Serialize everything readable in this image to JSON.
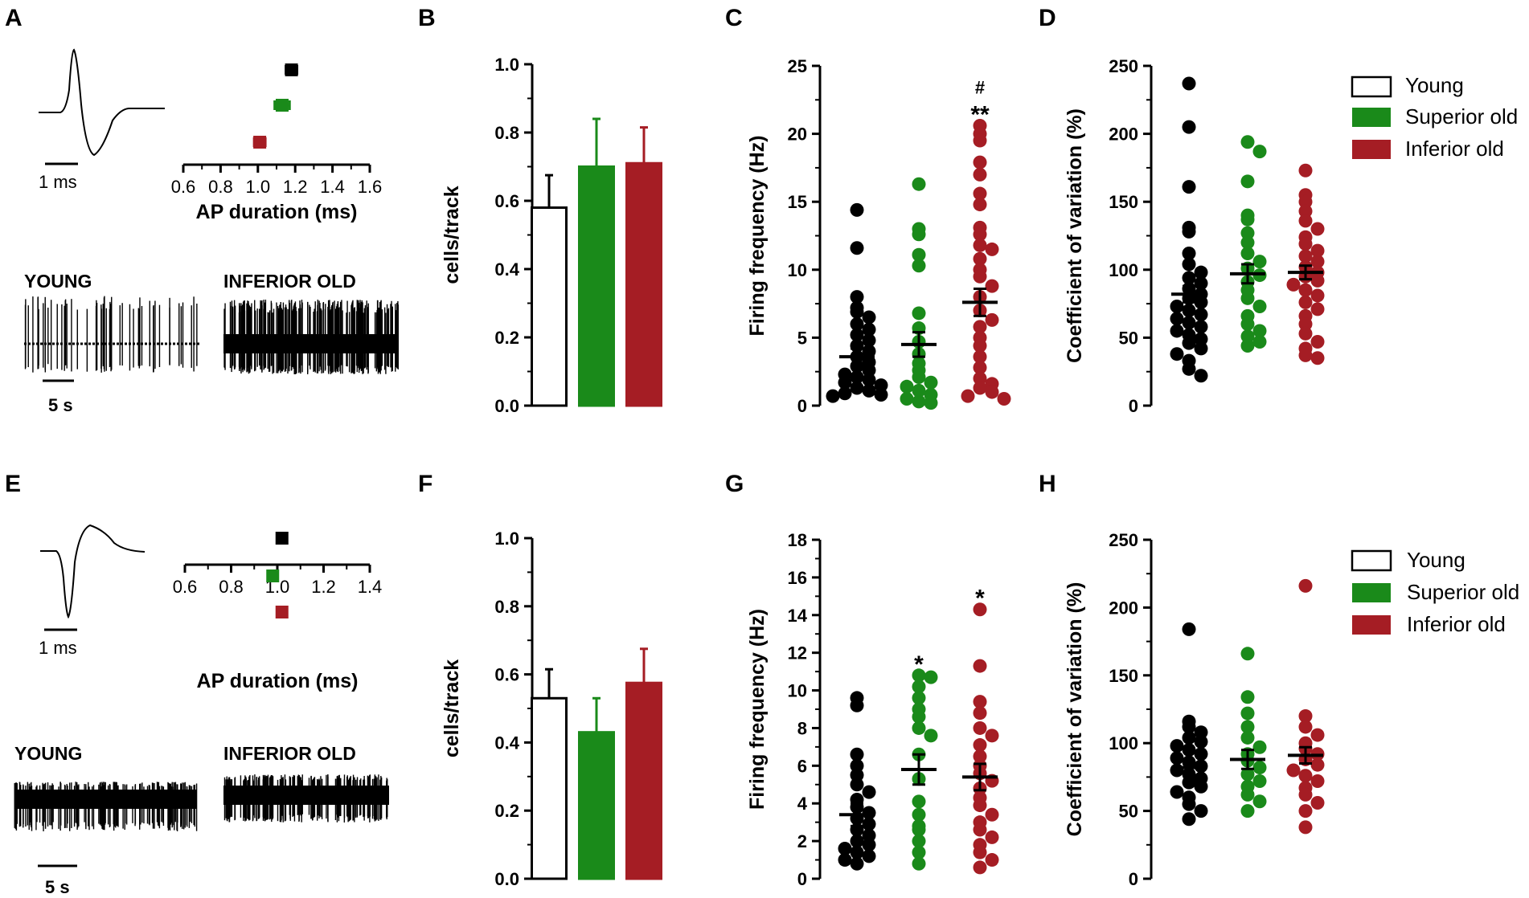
{
  "colors": {
    "young": "#000000",
    "superior": "#1a8a1a",
    "inferior": "#a51d24"
  },
  "panels": {
    "A": "A",
    "B": "B",
    "C": "C",
    "D": "D",
    "E": "E",
    "F": "F",
    "G": "G",
    "H": "H"
  },
  "legend": {
    "young": "Young",
    "superior": "Superior old",
    "inferior": "Inferior old"
  },
  "traces": {
    "young": "YOUNG",
    "inferior": "INFERIOR OLD",
    "scale_time": "5 s",
    "scale_spike": "1 ms"
  },
  "chart_data": [
    {
      "id": "A",
      "type": "scatter",
      "title": "",
      "xlabel": "AP duration (ms)",
      "xlim": [
        0.6,
        1.6
      ],
      "ticks": [
        "0.6",
        "0.8",
        "1.0",
        "1.2",
        "1.4",
        "1.6"
      ],
      "series": [
        {
          "name": "Young",
          "mean": 1.18,
          "sem": 0.03
        },
        {
          "name": "Superior old",
          "mean": 1.13,
          "sem": 0.04
        },
        {
          "name": "Inferior old",
          "mean": 1.01,
          "sem": 0.03
        }
      ]
    },
    {
      "id": "B",
      "type": "bar",
      "ylabel": "cells/track",
      "ylim": [
        0,
        1.0
      ],
      "ticks": [
        "0.0",
        "0.2",
        "0.4",
        "0.6",
        "0.8",
        "1.0"
      ],
      "categories": [
        "Young",
        "Superior old",
        "Inferior old"
      ],
      "values": [
        0.58,
        0.7,
        0.71
      ],
      "errors": [
        0.095,
        0.14,
        0.105
      ]
    },
    {
      "id": "C",
      "type": "scatter",
      "ylabel": "Firing frequency (Hz)",
      "ylim": [
        0,
        25
      ],
      "ticks": [
        "0",
        "5",
        "10",
        "15",
        "20",
        "25"
      ],
      "categories": [
        "Young",
        "Superior old",
        "Inferior old"
      ],
      "means": [
        3.6,
        4.5,
        7.6
      ],
      "sems": [
        0.6,
        0.9,
        1.0
      ],
      "annotations": [
        {
          "group": 2,
          "lines": [
            "#",
            "**"
          ]
        }
      ],
      "points": [
        [
          14.4,
          11.6,
          8.0,
          7.2,
          6.9,
          6.5,
          6.0,
          5.6,
          5.2,
          4.8,
          4.4,
          4.0,
          3.6,
          3.2,
          2.9,
          2.6,
          2.3,
          2.1,
          1.9,
          1.7,
          1.5,
          1.3,
          1.1,
          0.9,
          0.8,
          0.7
        ],
        [
          16.3,
          13.0,
          12.6,
          11.1,
          10.3,
          6.8,
          5.7,
          4.7,
          3.8,
          3.1,
          2.6,
          2.1,
          1.7,
          1.4,
          1.1,
          0.8,
          0.5,
          0.3,
          0.2
        ],
        [
          20.6,
          20.0,
          19.5,
          17.9,
          17.0,
          15.6,
          14.8,
          13.1,
          12.6,
          11.8,
          11.5,
          10.8,
          10.0,
          9.5,
          8.8,
          8.0,
          7.0,
          6.3,
          5.8,
          5.0,
          4.4,
          3.6,
          2.8,
          2.0,
          1.6,
          1.3,
          1.0,
          0.7,
          0.5
        ]
      ]
    },
    {
      "id": "D",
      "type": "scatter",
      "ylabel": "Coefficient of variation (%)",
      "ylim": [
        0,
        250
      ],
      "ticks": [
        "0",
        "50",
        "100",
        "150",
        "200",
        "250"
      ],
      "categories": [
        "Young",
        "Superior old",
        "Inferior old"
      ],
      "means": [
        82,
        97,
        98
      ],
      "sems": [
        6,
        7,
        5
      ],
      "points": [
        [
          237,
          205,
          161,
          131,
          128,
          112,
          104,
          98,
          94,
          90,
          86,
          82,
          79,
          76,
          73,
          70,
          67,
          64,
          61,
          58,
          55,
          52,
          49,
          46,
          42,
          38,
          33,
          27,
          22
        ],
        [
          194,
          187,
          165,
          140,
          137,
          127,
          120,
          112,
          106,
          101,
          96,
          91,
          85,
          79,
          73,
          66,
          60,
          55,
          51,
          47,
          44
        ],
        [
          173,
          155,
          150,
          143,
          136,
          130,
          124,
          119,
          114,
          110,
          106,
          102,
          98,
          95,
          92,
          89,
          85,
          81,
          76,
          71,
          66,
          60,
          53,
          47,
          42,
          37,
          35
        ]
      ]
    },
    {
      "id": "E",
      "type": "scatter",
      "xlabel": "AP duration (ms)",
      "xlim": [
        0.6,
        1.4
      ],
      "ticks": [
        "0.6",
        "0.8",
        "1.0",
        "1.2",
        "1.4"
      ],
      "series": [
        {
          "name": "Young",
          "mean": 1.02,
          "sem": 0.01
        },
        {
          "name": "Superior old",
          "mean": 0.98,
          "sem": 0.02
        },
        {
          "name": "Inferior old",
          "mean": 1.02,
          "sem": 0.02
        }
      ]
    },
    {
      "id": "F",
      "type": "bar",
      "ylabel": "cells/track",
      "ylim": [
        0,
        1.0
      ],
      "ticks": [
        "0.0",
        "0.2",
        "0.4",
        "0.6",
        "0.8",
        "1.0"
      ],
      "categories": [
        "Young",
        "Superior old",
        "Inferior old"
      ],
      "values": [
        0.53,
        0.43,
        0.575
      ],
      "errors": [
        0.085,
        0.1,
        0.1
      ]
    },
    {
      "id": "G",
      "type": "scatter",
      "ylabel": "Firing frequency (Hz)",
      "ylim": [
        0,
        18
      ],
      "ticks": [
        "0",
        "2",
        "4",
        "6",
        "8",
        "10",
        "12",
        "14",
        "16",
        "18"
      ],
      "categories": [
        "Young",
        "Superior old",
        "Inferior old"
      ],
      "means": [
        3.4,
        5.8,
        5.4
      ],
      "sems": [
        0.6,
        0.8,
        0.7
      ],
      "annotations": [
        {
          "group": 1,
          "lines": [
            "*"
          ]
        },
        {
          "group": 2,
          "lines": [
            "*"
          ]
        }
      ],
      "points": [
        [
          9.6,
          9.2,
          6.6,
          6.0,
          5.5,
          5.0,
          4.6,
          4.2,
          3.8,
          3.5,
          3.2,
          2.9,
          2.6,
          2.3,
          2.0,
          1.8,
          1.6,
          1.4,
          1.2,
          1.0,
          0.8
        ],
        [
          10.8,
          10.7,
          10.2,
          9.6,
          9.0,
          8.6,
          8.0,
          7.6,
          6.6,
          5.3,
          4.1,
          3.4,
          2.8,
          2.6,
          2.0,
          1.4,
          0.8
        ],
        [
          14.3,
          11.3,
          9.4,
          8.8,
          8.0,
          7.6,
          7.1,
          6.5,
          6.0,
          5.6,
          5.2,
          4.8,
          4.3,
          3.9,
          3.4,
          3.0,
          2.6,
          2.2,
          1.8,
          1.4,
          1.0,
          0.6
        ]
      ]
    },
    {
      "id": "H",
      "type": "scatter",
      "ylabel": "Coefficient of variation (%)",
      "ylim": [
        0,
        250
      ],
      "ticks": [
        "0",
        "50",
        "100",
        "150",
        "200",
        "250"
      ],
      "categories": [
        "Young",
        "Superior old",
        "Inferior old"
      ],
      "means": [
        82,
        88,
        91
      ],
      "sems": [
        4,
        7,
        6
      ],
      "points": [
        [
          184,
          116,
          112,
          108,
          104,
          101,
          98,
          95,
          92,
          89,
          86,
          83,
          80,
          77,
          74,
          71,
          68,
          64,
          60,
          55,
          50,
          44
        ],
        [
          166,
          134,
          122,
          112,
          104,
          97,
          92,
          87,
          82,
          77,
          72,
          68,
          62,
          57,
          50
        ],
        [
          216,
          120,
          112,
          106,
          100,
          96,
          92,
          88,
          84,
          80,
          76,
          72,
          67,
          62,
          56,
          50,
          38
        ]
      ]
    }
  ]
}
